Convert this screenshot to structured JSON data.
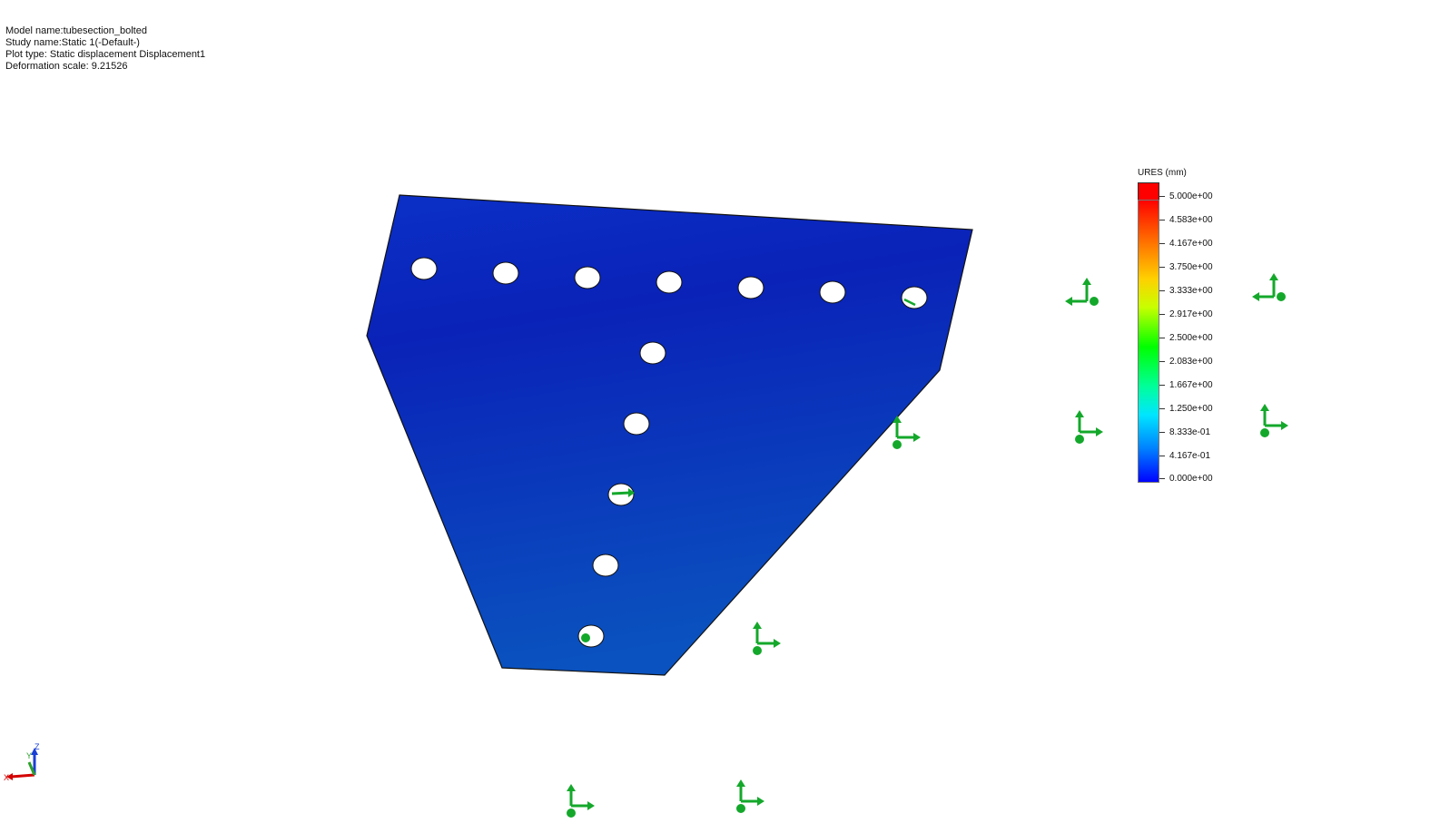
{
  "info": {
    "model_name": "Model name:tubesection_bolted",
    "study_name": "Study name:Static 1(-Default-)",
    "plot_type": "Plot type: Static displacement Displacement1",
    "deformation_scale": "Deformation scale: 9.21526"
  },
  "legend": {
    "title": "URES (mm)",
    "labels": [
      "5.000e+00",
      "4.583e+00",
      "4.167e+00",
      "3.750e+00",
      "3.333e+00",
      "2.917e+00",
      "2.500e+00",
      "2.083e+00",
      "1.667e+00",
      "1.250e+00",
      "8.333e-01",
      "4.167e-01",
      "0.000e+00"
    ]
  },
  "triad": {
    "x_label": "X",
    "y_label": "Y",
    "z_label": "Z"
  },
  "colors": {
    "plate_top": "#0b2ec8",
    "plate_bottom": "#0a4fc0",
    "fixture_green": "#14a82b",
    "triad_x": "#d40000",
    "triad_y": "#2aa02a",
    "triad_z": "#1a3fd6"
  }
}
